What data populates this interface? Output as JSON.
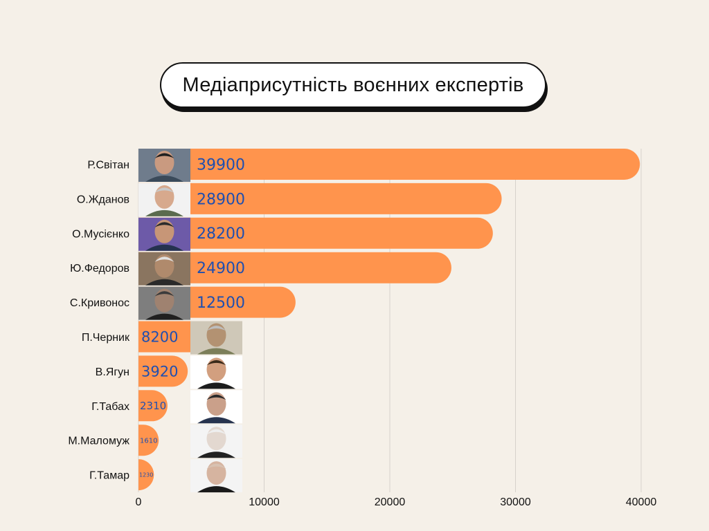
{
  "chart_data": {
    "type": "bar",
    "orientation": "horizontal",
    "title": "Медіаприсутність воєнних експертів",
    "categories": [
      "Р.Світан",
      "О.Жданов",
      "О.Мусієнко",
      "Ю.Федоров",
      "С.Кривонос",
      "П.Черник",
      "В.Ягун",
      "Г.Табах",
      "М.Маломуж",
      "Г.Тамар"
    ],
    "values": [
      39900,
      28900,
      28200,
      24900,
      12500,
      8200,
      3920,
      2310,
      1610,
      1230
    ],
    "value_labels": [
      "39900",
      "28900",
      "28200",
      "24900",
      "12500",
      "8200",
      "3920",
      "2310",
      "1610",
      "1230"
    ],
    "xlim": [
      0,
      40000
    ],
    "x_ticks": [
      0,
      10000,
      20000,
      30000,
      40000
    ],
    "x_tick_labels": [
      "0",
      "10000",
      "20000",
      "30000",
      "40000"
    ],
    "grid": "vertical",
    "legend": "none",
    "bar_color": "#ff944d",
    "value_label_color": "#1f4fb0"
  }
}
